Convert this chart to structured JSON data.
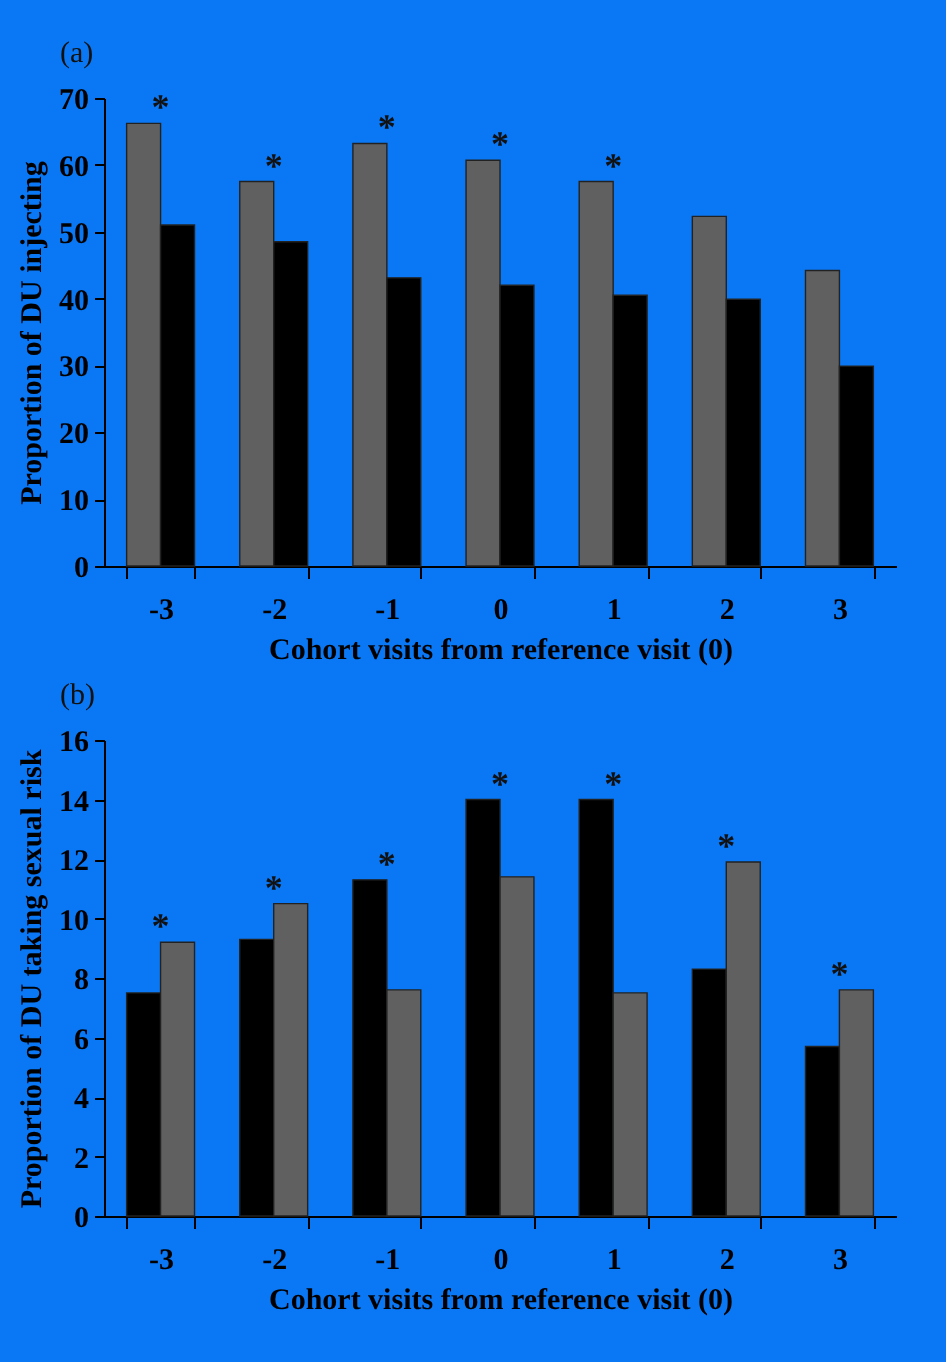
{
  "chart_data": [
    {
      "type": "bar",
      "xlabel": "Cohort visits from reference visit (0)",
      "ylabel": "Proportion of DU injecting",
      "categories": [
        "-3",
        "-2",
        "-1",
        "0",
        "1",
        "2",
        "3"
      ],
      "series": [
        {
          "color": "#606060",
          "values": [
            66.2,
            57.5,
            63.2,
            60.7,
            57.5,
            52.3,
            44.2
          ]
        },
        {
          "color": "#000000",
          "values": [
            51,
            48.5,
            43.1,
            42,
            40.5,
            39.9,
            29.9
          ]
        }
      ],
      "ylim": [
        0,
        70
      ],
      "yticks": [
        0,
        10,
        20,
        30,
        40,
        50,
        60,
        70
      ],
      "grid": false,
      "legend": false,
      "annotations": [
        "(a)",
        {
          "text": "*",
          "x": "-3",
          "y": 66.2
        },
        {
          "text": "*",
          "x": "-2",
          "y": 57.5
        },
        {
          "text": "*",
          "x": "-1",
          "y": 63.2
        },
        {
          "text": "*",
          "x": "0",
          "y": 60.7
        },
        {
          "text": "*",
          "x": "1",
          "y": 57.5
        }
      ]
    },
    {
      "type": "bar",
      "xlabel": "Cohort  visits from reference visit (0)",
      "ylabel": "Proportion of DU taking sexual risk",
      "categories": [
        "-3",
        "-2",
        "-1",
        "0",
        "1",
        "2",
        "3"
      ],
      "series": [
        {
          "color": "#000000",
          "values": [
            7.5,
            9.3,
            11.3,
            14,
            14,
            8.3,
            5.7
          ]
        },
        {
          "color": "#606060",
          "values": [
            9.2,
            10.5,
            7.6,
            11.4,
            7.5,
            11.9,
            7.6
          ]
        }
      ],
      "ylim": [
        0,
        16
      ],
      "yticks": [
        0,
        2,
        4,
        6,
        8,
        10,
        12,
        14,
        16
      ],
      "grid": false,
      "legend": false,
      "annotations": [
        "(b)",
        {
          "text": "*",
          "x": "-3",
          "y": 9.2
        },
        {
          "text": "*",
          "x": "-2",
          "y": 10.5
        },
        {
          "text": "*",
          "x": "-1",
          "y": 11.3
        },
        {
          "text": "*",
          "x": "0",
          "y": 14
        },
        {
          "text": "*",
          "x": "1",
          "y": 14
        },
        {
          "text": "*",
          "x": "2",
          "y": 11.9
        },
        {
          "text": "*",
          "x": "3",
          "y": 7.6
        }
      ]
    }
  ]
}
